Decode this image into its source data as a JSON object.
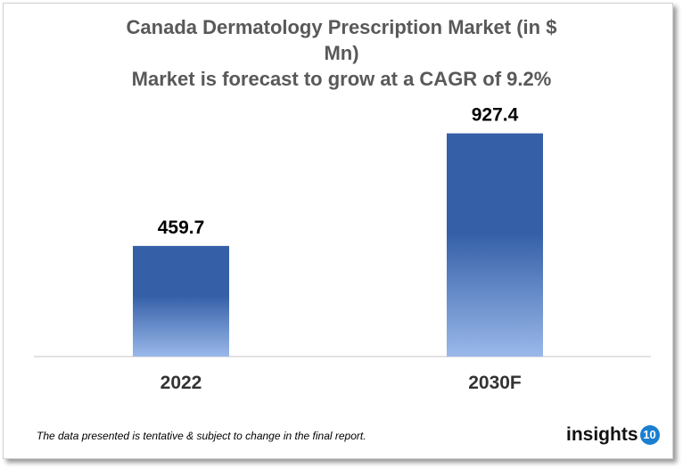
{
  "chart_data": {
    "type": "bar",
    "title": "Canada Dermatology  Prescription Market (in $ Mn)",
    "subtitle": "Market is forecast to grow at a CAGR of 9.2%",
    "categories": [
      "2022",
      "2030F"
    ],
    "values": [
      459.7,
      927.4
    ],
    "data_labels": [
      "459.7",
      "927.4"
    ],
    "ylim": [
      0,
      1000
    ],
    "grid": false,
    "legend": "none",
    "colors": {
      "bar_top": "#3560a8",
      "bar_bottom": "#9ab8ea"
    }
  },
  "title_line1": "Canada Dermatology  Prescription Market (in $",
  "title_line2": "Mn)",
  "title_line3": "Market is forecast to grow at a CAGR of 9.2%",
  "footnote": "The data presented is tentative & subject to change in the final report.",
  "logo": {
    "text": "insights",
    "badge": "10",
    "color": "#1a7fd1"
  }
}
